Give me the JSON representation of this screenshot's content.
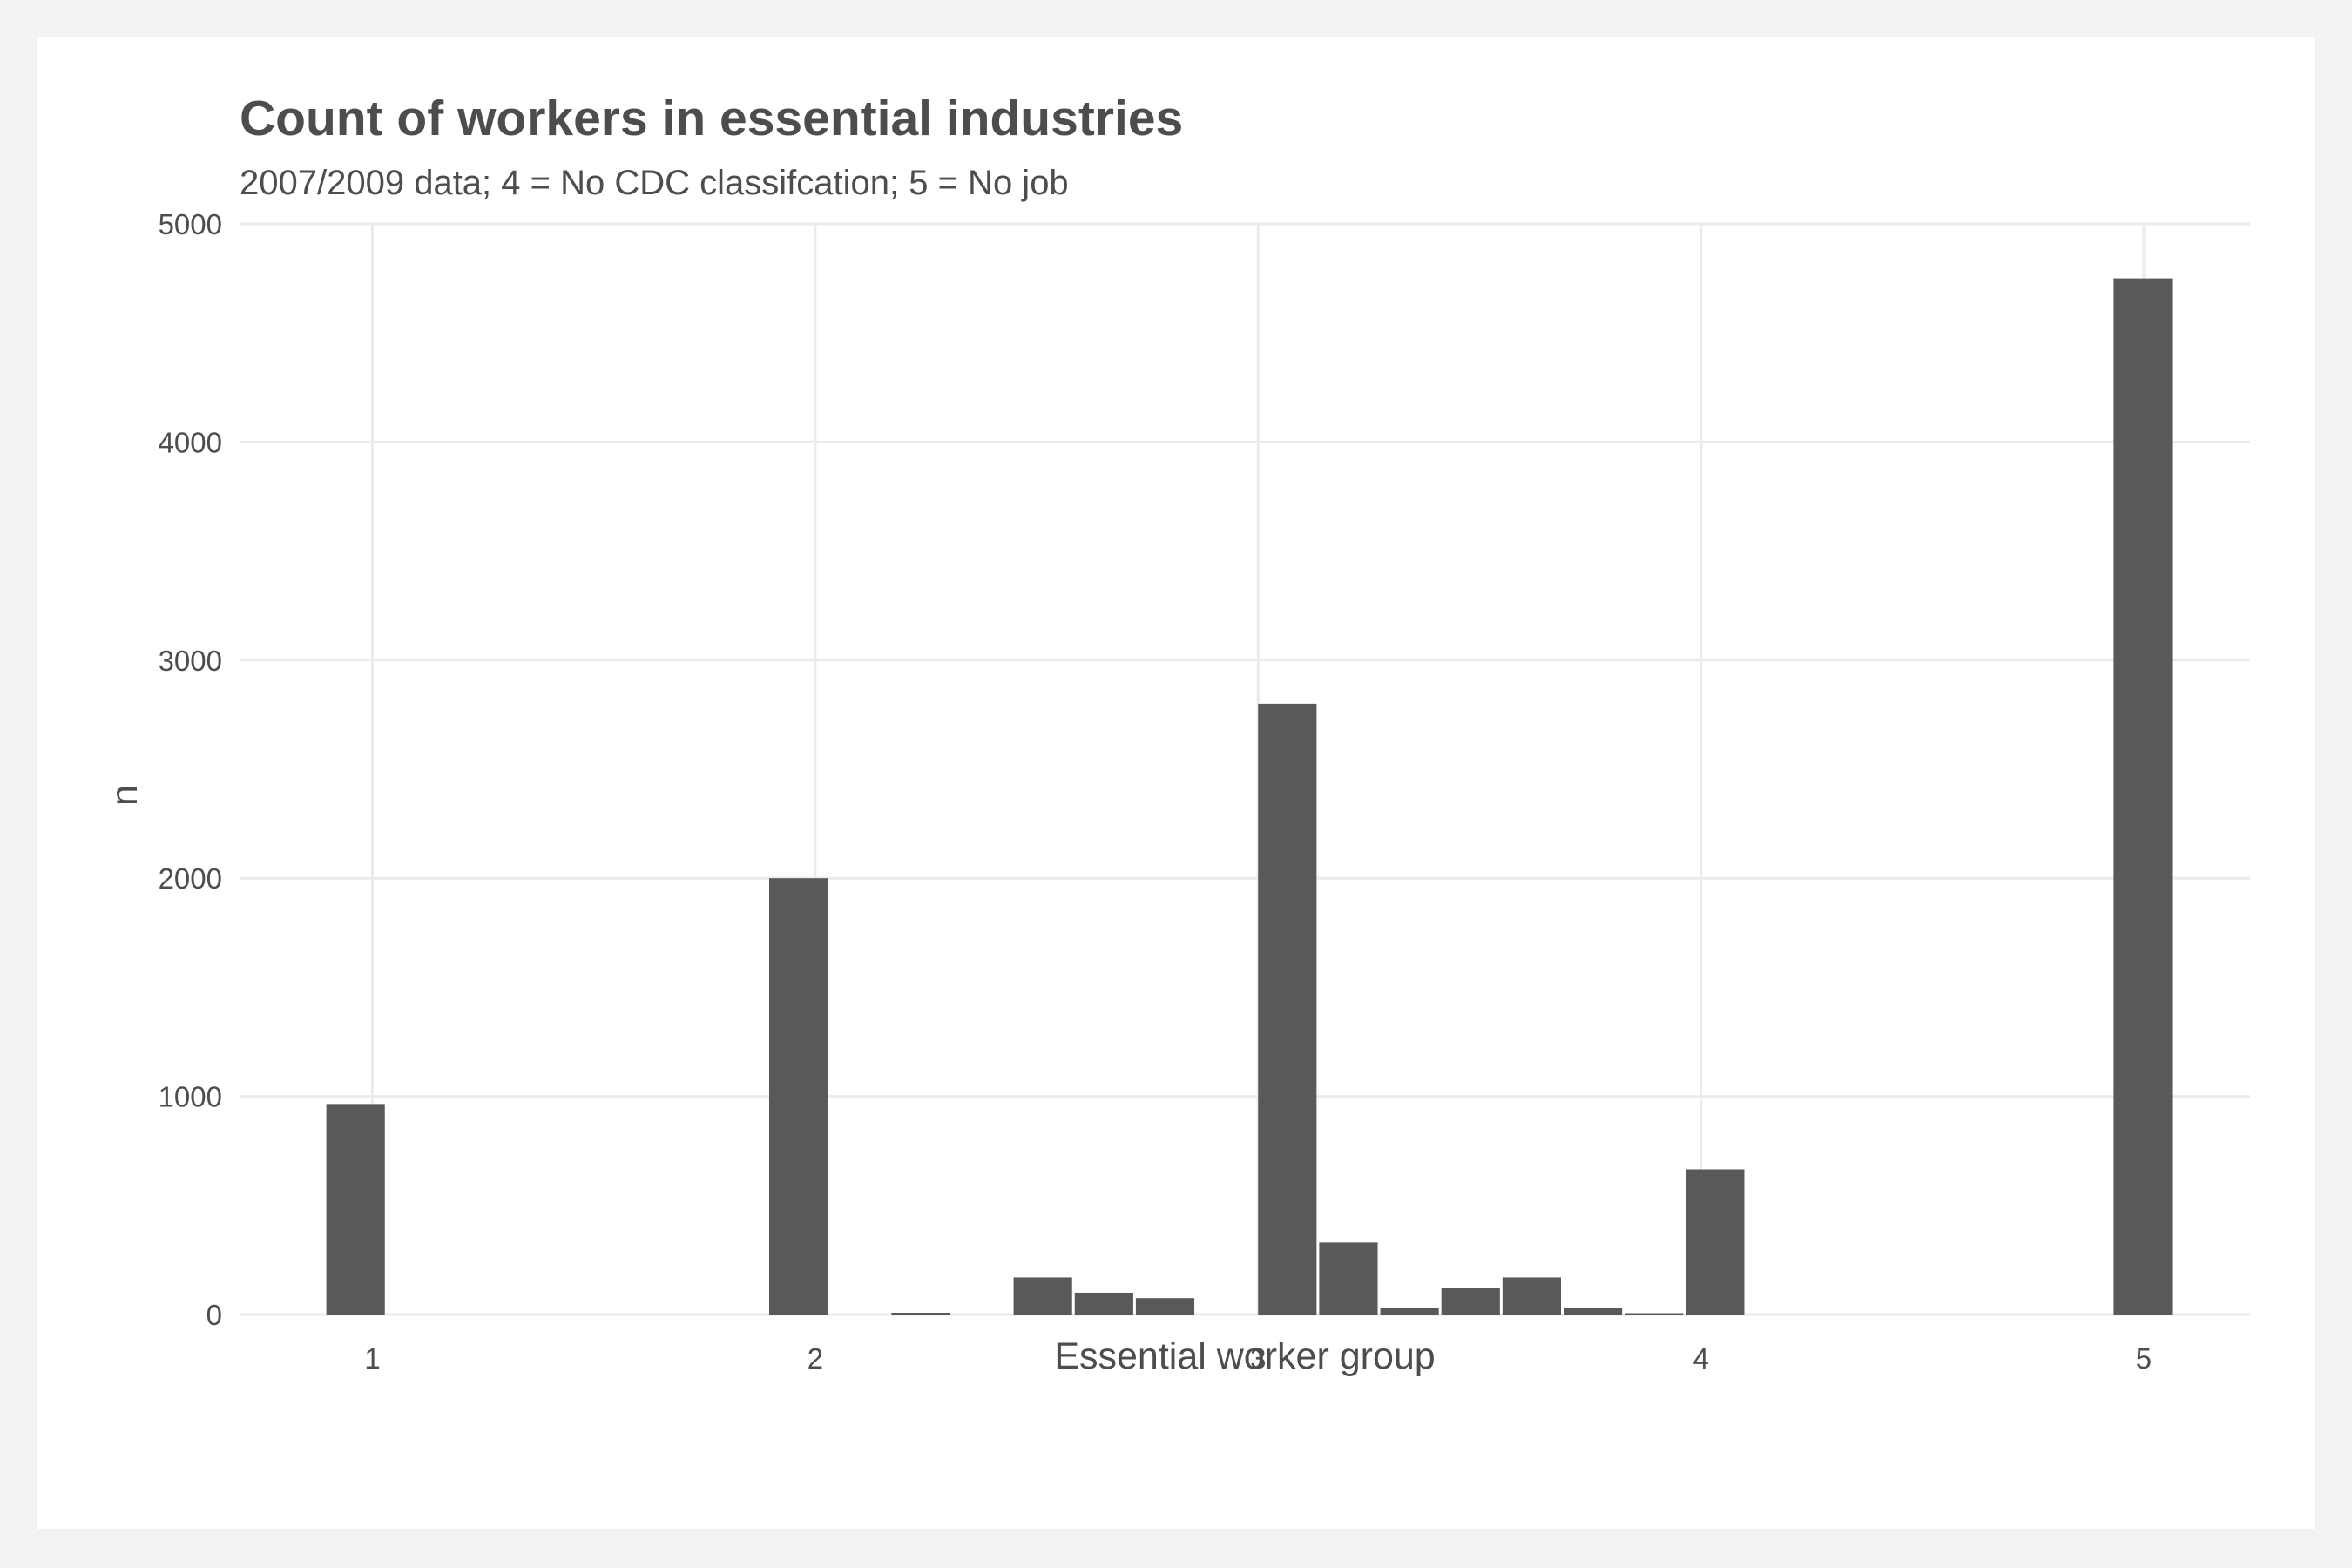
{
  "chart_data": {
    "type": "bar",
    "title": "Count of workers in essential industries",
    "subtitle": "2007/2009 data; 4 = No CDC classifcation; 5 = No job",
    "xlabel": "Essential worker group",
    "ylabel": "n",
    "xlim": [
      0.7,
      5.24
    ],
    "ylim": [
      0,
      5000
    ],
    "x_ticks": [
      1,
      2,
      3,
      4,
      5
    ],
    "y_ticks": [
      0,
      1000,
      2000,
      3000,
      4000,
      5000
    ],
    "bin_width": 0.138,
    "grid": true,
    "bar_color": "#595959",
    "bins": [
      {
        "x": 0.962,
        "n": 965
      },
      {
        "x": 1.962,
        "n": 2000
      },
      {
        "x": 2.238,
        "n": 8
      },
      {
        "x": 2.514,
        "n": 170
      },
      {
        "x": 2.652,
        "n": 100
      },
      {
        "x": 2.79,
        "n": 75
      },
      {
        "x": 3.066,
        "n": 2800
      },
      {
        "x": 3.204,
        "n": 330
      },
      {
        "x": 3.342,
        "n": 30
      },
      {
        "x": 3.48,
        "n": 120
      },
      {
        "x": 3.618,
        "n": 170
      },
      {
        "x": 3.756,
        "n": 30
      },
      {
        "x": 3.894,
        "n": 6
      },
      {
        "x": 4.032,
        "n": 665
      },
      {
        "x": 4.998,
        "n": 4750
      }
    ]
  }
}
